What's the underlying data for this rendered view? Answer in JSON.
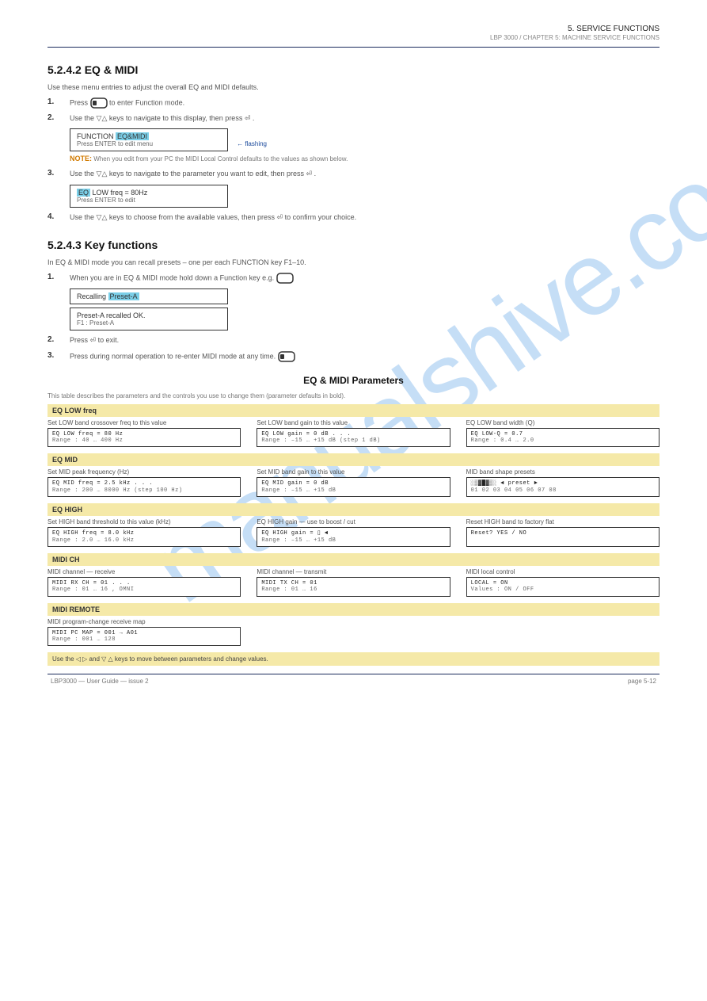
{
  "colors": {
    "rule": "#1a2a5c",
    "watermark": "rgba(90,160,230,0.35)",
    "highlight": "#7bcfe8",
    "yellow": "#f5e9a8",
    "text_body": "#555555",
    "text_heading": "#111111",
    "note_label": "#d17a00"
  },
  "watermark": "manualshive.com",
  "header": {
    "category": "5. SERVICE FUNCTIONS",
    "subcategory": "LBP 3000  /  CHAPTER 5: MACHINE SERVICE FUNCTIONS"
  },
  "section1": {
    "title": "5.2.4.2 EQ & MIDI",
    "intro": "Use these menu entries to adjust the overall EQ and MIDI defaults.",
    "steps": [
      {
        "n": "1.",
        "text_a": "Press ",
        "text_b": " to enter Function mode."
      },
      {
        "n": "2.",
        "text_a": "Use the ",
        "text_b": " keys to navigate to this display, then press ",
        "text_c": "."
      }
    ],
    "lcd1": {
      "line1_a": "FUNCTION ",
      "line1_b": "EQ&MIDI",
      "line2": "Press ENTER to edit menu",
      "pointer": "flashing"
    },
    "note": {
      "label": "NOTE:",
      "text": "When you edit from your PC the MIDI Local Control defaults to the values as shown below."
    },
    "steps2": [
      {
        "n": "3.",
        "text_a": "Use the ",
        "text_b": " keys to navigate to the parameter you want to edit, then press ",
        "text_c": "."
      }
    ],
    "lcd2": {
      "line1_a": "EQ",
      "line1_b": " LOW freq = 80Hz",
      "line2": "Press ENTER to edit"
    },
    "steps3": [
      {
        "n": "4.",
        "text_a": "Use the ",
        "text_b": " keys to choose from the available values, then press ",
        "text_c": " to confirm your choice."
      }
    ]
  },
  "section2": {
    "title": "5.2.4.3 Key functions",
    "intro": "In EQ & MIDI mode you can recall presets – one per each FUNCTION key F1–10.",
    "steps": [
      {
        "n": "1.",
        "text": "When you are in EQ & MIDI mode hold down a Function key e.g. "
      }
    ],
    "lcd3": {
      "line1_a": "Recalling ",
      "line1_b": "Preset-A",
      "line2": ""
    },
    "lcd4": {
      "line1": "Preset-A recalled OK.",
      "line2": "F1 : Preset-A"
    },
    "steps2": [
      {
        "n": "2.",
        "text_a": "Press ",
        "text_b": " to exit."
      },
      {
        "n": "3.",
        "text": "Press      during normal operation to re-enter MIDI mode at any time."
      }
    ]
  },
  "section3": {
    "title": "EQ & MIDI Parameters",
    "desc": "This table describes the parameters and the controls you use to change them (parameter defaults in bold).",
    "rows": [
      {
        "label": "EQ LOW freq",
        "cols": [
          {
            "sub": "Set LOW band crossover freq to this value",
            "lcd": [
              "EQ LOW freq = 80 Hz",
              "Range :  40 … 400  Hz"
            ]
          },
          {
            "sub": "Set LOW band gain to this value",
            "lcd": [
              "EQ LOW gain  =   0 dB  . . .",
              "Range : –15 … +15  dB  (step 1 dB)"
            ]
          },
          {
            "sub": "EQ LOW band width (Q)",
            "lcd": [
              "EQ LOW-Q   =  0.7",
              "Range :  0.4 … 2.0"
            ]
          }
        ]
      },
      {
        "label": "EQ MID",
        "cols": [
          {
            "sub": "Set MID peak frequency (Hz)",
            "lcd": [
              "EQ MID freq = 2.5 kHz   .  .  .",
              "Range :  200 … 8000 Hz  (step 100 Hz)"
            ]
          },
          {
            "sub": "Set MID band gain to this value",
            "lcd": [
              "EQ MID gain  =   0 dB",
              "Range : –15 … +15 dB"
            ]
          },
          {
            "sub": "MID band shape presets",
            "lcd": [
              "░▒▓█▓▒░  ◄ preset ►",
              "01 02 03 04 05 06 07 08"
            ]
          }
        ]
      },
      {
        "label": "EQ HIGH",
        "cols": [
          {
            "sub": "Set HIGH band threshold to this value (kHz)",
            "lcd": [
              "EQ HIGH freq  =  8.0 kHz",
              "Range :  2.0 … 16.0 kHz"
            ]
          },
          {
            "sub": "EQ HIGH gain — use     to boost / cut",
            "lcd": [
              "EQ HIGH gain  =  ▯  ◄",
              "Range : –15 … +15 dB"
            ]
          },
          {
            "sub": "Reset HIGH band to factory flat",
            "lcd": [
              "Reset?  YES / NO",
              ""
            ]
          }
        ]
      },
      {
        "label": "MIDI CH",
        "cols": [
          {
            "sub": "MIDI channel — receive",
            "lcd": [
              "MIDI RX CH  = 01    .  .  .",
              "Range :  01 … 16 ,  OMNI"
            ]
          },
          {
            "sub": "MIDI channel — transmit",
            "lcd": [
              "MIDI TX CH  = 01",
              "Range :  01 … 16"
            ]
          },
          {
            "sub": "MIDI local control",
            "lcd": [
              "LOCAL  =  ON",
              "Values :  ON / OFF"
            ]
          }
        ]
      },
      {
        "label": "MIDI REMOTE",
        "cols": [
          {
            "sub": "MIDI program-change receive map",
            "lcd": [
              "MIDI PC MAP  = 001 → A01",
              "Range :  001 … 128"
            ]
          },
          {
            "sub": "",
            "lcd": [
              "",
              ""
            ]
          },
          {
            "sub": "",
            "lcd": [
              "",
              ""
            ]
          }
        ]
      }
    ],
    "footer_note": "Use the ◁ ▷ and ▽ △ keys to move between parameters and change values."
  },
  "page_footer": {
    "left": "LBP3000 — User Guide — issue 2",
    "right": "page 5-12"
  }
}
